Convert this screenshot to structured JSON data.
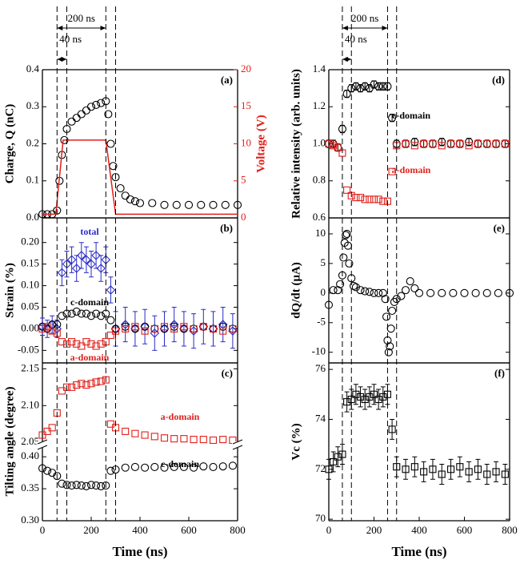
{
  "timing": {
    "markers": [
      60,
      100,
      260,
      300
    ],
    "spans": [
      {
        "from": 60,
        "to": 260,
        "label": "200 ns"
      },
      {
        "from": 60,
        "to": 100,
        "label": "40 ns"
      }
    ]
  },
  "chart_data": [
    {
      "type": "scatter",
      "panel_label": "(a)",
      "ylabel": "Charge, Q (nC)",
      "y2label": "Voltage (V)",
      "xlim": [
        0,
        800
      ],
      "ylim": [
        0,
        0.4
      ],
      "yticks": [
        {
          "value": 0,
          "label": "0.0"
        },
        0.1,
        0.2,
        0.3,
        0.4
      ],
      "y2lim": [
        0,
        20
      ],
      "y2ticks": [
        0,
        5,
        10,
        15,
        20
      ],
      "y2color": "#e0201b",
      "series": [
        {
          "color": "#000000",
          "marker": "circle",
          "x": [
            0,
            20,
            40,
            60,
            70,
            80,
            90,
            100,
            120,
            140,
            160,
            180,
            200,
            220,
            240,
            260,
            270,
            280,
            290,
            300,
            320,
            340,
            360,
            380,
            400,
            450,
            500,
            550,
            600,
            650,
            700,
            750,
            800
          ],
          "values": [
            0.01,
            0.01,
            0.01,
            0.02,
            0.1,
            0.17,
            0.21,
            0.24,
            0.26,
            0.27,
            0.28,
            0.29,
            0.3,
            0.305,
            0.31,
            0.315,
            0.28,
            0.2,
            0.14,
            0.11,
            0.08,
            0.06,
            0.05,
            0.045,
            0.04,
            0.04,
            0.035,
            0.035,
            0.035,
            0.035,
            0.035,
            0.035,
            0.035
          ]
        },
        {
          "color": "#e0201b",
          "marker": "line",
          "axis": "y2",
          "x": [
            0,
            55,
            85,
            260,
            300,
            800
          ],
          "values": [
            0.5,
            0.5,
            10.5,
            10.5,
            0.5,
            0.5
          ]
        }
      ]
    },
    {
      "type": "scatter",
      "panel_label": "(b)",
      "ylabel": "Strain (%)",
      "xlim": [
        0,
        800
      ],
      "ylim": [
        -0.079,
        0.257
      ],
      "yticks": [
        -0.05,
        {
          "value": 0,
          "label": "0.00"
        },
        0.05,
        {
          "value": 0.1,
          "label": "0.10"
        },
        0.15,
        {
          "value": 0.2,
          "label": "0.20"
        }
      ],
      "series": [
        {
          "name": "total",
          "color": "#2b2bc8",
          "marker": "diamond",
          "x": [
            0,
            20,
            40,
            60,
            80,
            100,
            120,
            140,
            160,
            180,
            200,
            220,
            240,
            260,
            280,
            300,
            340,
            380,
            420,
            460,
            500,
            540,
            580,
            620,
            660,
            700,
            740,
            780
          ],
          "values": [
            0.005,
            0.0,
            0.01,
            0.0,
            0.13,
            0.15,
            0.16,
            0.14,
            0.17,
            0.16,
            0.15,
            0.17,
            0.14,
            0.16,
            0.09,
            0.0,
            0.01,
            0.0,
            0.005,
            -0.01,
            0.0,
            0.01,
            0.0,
            -0.005,
            0.005,
            0.0,
            0.01,
            -0.005
          ],
          "errors": [
            0.02,
            0.02,
            0.02,
            0.02,
            0.03,
            0.03,
            0.03,
            0.03,
            0.03,
            0.03,
            0.03,
            0.03,
            0.03,
            0.03,
            0.03,
            0.04,
            0.04,
            0.04,
            0.04,
            0.04,
            0.04,
            0.04,
            0.04,
            0.04,
            0.04,
            0.04,
            0.04,
            0.04
          ]
        },
        {
          "name": "c-domain",
          "color": "#000000",
          "marker": "circle",
          "x": [
            0,
            20,
            40,
            60,
            80,
            100,
            120,
            140,
            160,
            180,
            200,
            220,
            240,
            260,
            280,
            300,
            340,
            380,
            420,
            460,
            500,
            540,
            580,
            620,
            660,
            700,
            740,
            780
          ],
          "values": [
            0.005,
            0.0,
            0.01,
            0.01,
            0.03,
            0.035,
            0.035,
            0.04,
            0.035,
            0.035,
            0.03,
            0.035,
            0.03,
            0.035,
            0.02,
            0.0,
            0.005,
            0.0,
            0.005,
            0.0,
            0.0,
            0.005,
            0.0,
            0.0,
            0.005,
            0.0,
            0.005,
            0.0
          ]
        },
        {
          "name": "a-domain",
          "color": "#e0201b",
          "marker": "square",
          "x": [
            0,
            20,
            40,
            60,
            80,
            100,
            120,
            140,
            160,
            180,
            200,
            220,
            240,
            260,
            280,
            300,
            340,
            380,
            420,
            460,
            500,
            540,
            580,
            620,
            660,
            700,
            740,
            780
          ],
          "values": [
            0.0,
            0.005,
            -0.005,
            -0.01,
            -0.03,
            -0.035,
            -0.03,
            -0.035,
            -0.04,
            -0.03,
            -0.035,
            -0.04,
            -0.035,
            -0.03,
            -0.015,
            -0.005,
            0.0,
            0.005,
            -0.005,
            0.0,
            0.005,
            0.0,
            0.005,
            0.0,
            0.005,
            0.0,
            -0.005,
            0.0
          ]
        }
      ]
    },
    {
      "type": "scatter",
      "panel_label": "(c)",
      "ylabel": "Tilting angle (degree)",
      "xlim": [
        0,
        800
      ],
      "ylim": [
        2.047,
        2.158
      ],
      "yticks": [
        2.05,
        {
          "value": 2.1,
          "label": "2.10"
        },
        2.15
      ],
      "series": [
        {
          "name": "a-domain",
          "color": "#e0201b",
          "marker": "square",
          "x": [
            0,
            20,
            40,
            60,
            80,
            100,
            120,
            140,
            160,
            180,
            200,
            220,
            240,
            260,
            280,
            300,
            340,
            380,
            420,
            460,
            500,
            540,
            580,
            620,
            660,
            700,
            740,
            780
          ],
          "values": [
            2.06,
            2.065,
            2.07,
            2.09,
            2.12,
            2.125,
            2.125,
            2.128,
            2.13,
            2.128,
            2.13,
            2.132,
            2.133,
            2.135,
            2.075,
            2.07,
            2.065,
            2.062,
            2.06,
            2.058,
            2.056,
            2.055,
            2.055,
            2.054,
            2.054,
            2.053,
            2.054,
            2.053
          ]
        }
      ]
    },
    {
      "type": "scatter",
      "xlabel": "Time (ns)",
      "xlim": [
        0,
        800
      ],
      "xticks": [
        0,
        200,
        400,
        600,
        800
      ],
      "ylim": [
        0.3,
        0.419
      ],
      "yticks": [
        {
          "value": 0.3,
          "label": "0.30"
        },
        0.35,
        {
          "value": 0.4,
          "label": "0.40"
        }
      ],
      "series": [
        {
          "name": "c-domain",
          "color": "#000000",
          "marker": "circle",
          "x": [
            0,
            20,
            40,
            60,
            80,
            100,
            120,
            140,
            160,
            180,
            200,
            220,
            240,
            260,
            280,
            300,
            340,
            380,
            420,
            460,
            500,
            540,
            580,
            620,
            660,
            700,
            740,
            780
          ],
          "values": [
            0.382,
            0.378,
            0.375,
            0.37,
            0.358,
            0.356,
            0.355,
            0.356,
            0.355,
            0.354,
            0.356,
            0.355,
            0.354,
            0.355,
            0.378,
            0.38,
            0.383,
            0.384,
            0.383,
            0.384,
            0.383,
            0.384,
            0.384,
            0.383,
            0.385,
            0.384,
            0.385,
            0.386
          ]
        }
      ]
    },
    {
      "type": "scatter",
      "panel_label": "(d)",
      "ylabel": "Relative intensity (arb. units)",
      "xlim": [
        0,
        800
      ],
      "ylim": [
        0.6,
        1.4
      ],
      "yticks": [
        0.6,
        0.8,
        {
          "value": 1,
          "label": "1.0"
        },
        1.2,
        1.4
      ],
      "series": [
        {
          "name": "c-domain",
          "color": "#000000",
          "marker": "circle",
          "x": [
            0,
            20,
            40,
            60,
            80,
            100,
            120,
            140,
            160,
            180,
            200,
            220,
            240,
            260,
            280,
            300,
            340,
            380,
            420,
            460,
            500,
            540,
            580,
            620,
            660,
            700,
            740,
            780
          ],
          "values": [
            1.0,
            1.0,
            0.98,
            1.08,
            1.27,
            1.3,
            1.31,
            1.3,
            1.31,
            1.3,
            1.32,
            1.31,
            1.31,
            1.31,
            1.14,
            1.0,
            1.0,
            1.01,
            1.0,
            1.0,
            1.01,
            1.0,
            1.0,
            1.01,
            1.0,
            1.0,
            1.0,
            1.0
          ],
          "errors": [
            0.02,
            0.02,
            0.02,
            0.02,
            0.02,
            0.02,
            0.02,
            0.02,
            0.02,
            0.02,
            0.02,
            0.02,
            0.02,
            0.02,
            0.02,
            0.02,
            0.02,
            0.02,
            0.02,
            0.02,
            0.02,
            0.02,
            0.02,
            0.02,
            0.02,
            0.02,
            0.02,
            0.02
          ]
        },
        {
          "name": "a-domain",
          "color": "#e0201b",
          "marker": "square",
          "x": [
            0,
            20,
            40,
            60,
            80,
            100,
            120,
            140,
            160,
            180,
            200,
            220,
            240,
            260,
            280,
            300,
            340,
            380,
            420,
            460,
            500,
            540,
            580,
            620,
            660,
            700,
            740,
            780
          ],
          "values": [
            1.0,
            0.99,
            0.98,
            0.95,
            0.75,
            0.72,
            0.71,
            0.71,
            0.7,
            0.7,
            0.7,
            0.7,
            0.69,
            0.69,
            0.85,
            0.99,
            1.0,
            0.99,
            1.0,
            1.0,
            0.99,
            1.0,
            1.0,
            0.99,
            1.0,
            1.0,
            1.0,
            1.0
          ]
        }
      ]
    },
    {
      "type": "scatter",
      "panel_label": "(e)",
      "ylabel": "dQ/dt (μA)",
      "xlim": [
        0,
        800
      ],
      "ylim": [
        -11.8,
        12.7
      ],
      "yticks": [
        -10,
        -5,
        0,
        5,
        10
      ],
      "series": [
        {
          "color": "#000000",
          "marker": "circle",
          "x": [
            0,
            20,
            40,
            50,
            60,
            65,
            70,
            75,
            80,
            85,
            90,
            100,
            110,
            120,
            140,
            160,
            180,
            200,
            220,
            240,
            250,
            255,
            260,
            265,
            270,
            275,
            280,
            290,
            300,
            320,
            340,
            360,
            380,
            400,
            450,
            500,
            550,
            600,
            650,
            700,
            750,
            800
          ],
          "values": [
            -2,
            0.5,
            0.5,
            1.5,
            3,
            6,
            8.5,
            9.8,
            10,
            8,
            5,
            2.5,
            1.2,
            1,
            0.5,
            0.3,
            0.2,
            0,
            0,
            0,
            -1,
            -4,
            -8,
            -10,
            -9,
            -6,
            -3,
            -1.5,
            -1,
            -0.5,
            0.5,
            2,
            0.8,
            0,
            0,
            0,
            0,
            0,
            0,
            0,
            0,
            0
          ]
        }
      ]
    },
    {
      "type": "scatter",
      "panel_label": "(f)",
      "ylabel": "Vc (%)",
      "xlabel": "Time (ns)",
      "xlim": [
        0,
        800
      ],
      "xticks": [
        0,
        200,
        400,
        600,
        800
      ],
      "ylim": [
        69.94,
        76.26
      ],
      "yticks": [
        70,
        72,
        74,
        76
      ],
      "series": [
        {
          "color": "#000000",
          "marker": "square",
          "x": [
            0,
            20,
            40,
            60,
            80,
            100,
            120,
            140,
            160,
            180,
            200,
            220,
            240,
            260,
            280,
            300,
            340,
            380,
            420,
            460,
            500,
            540,
            580,
            620,
            660,
            700,
            740,
            780
          ],
          "values": [
            72.0,
            72.3,
            72.5,
            72.6,
            74.7,
            74.8,
            75.0,
            74.9,
            74.8,
            74.9,
            75.0,
            74.8,
            74.9,
            75.0,
            73.6,
            72.1,
            72.0,
            72.1,
            71.9,
            72.0,
            71.8,
            72.0,
            72.1,
            71.9,
            72.0,
            71.8,
            71.9,
            71.8
          ],
          "errors": [
            0.4,
            0.4,
            0.4,
            0.4,
            0.4,
            0.4,
            0.4,
            0.4,
            0.4,
            0.4,
            0.4,
            0.4,
            0.4,
            0.4,
            0.4,
            0.4,
            0.4,
            0.4,
            0.4,
            0.4,
            0.4,
            0.4,
            0.4,
            0.4,
            0.4,
            0.4,
            0.4,
            0.4
          ]
        }
      ]
    }
  ]
}
